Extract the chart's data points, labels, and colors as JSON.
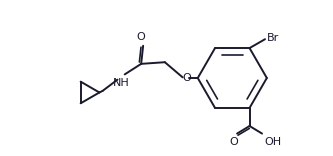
{
  "bg_color": "#ffffff",
  "line_color": "#1a1a2e",
  "line_width": 1.4,
  "font_size": 8.0,
  "figsize": [
    3.33,
    1.56
  ],
  "dpi": 100,
  "xlim": [
    0.0,
    10.0
  ],
  "ylim": [
    0.5,
    5.2
  ]
}
